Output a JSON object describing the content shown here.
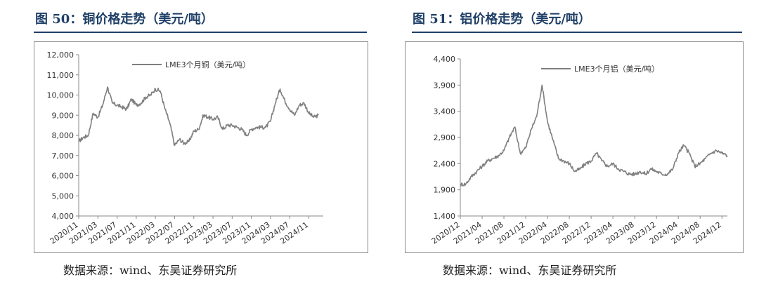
{
  "charts": [
    {
      "figure_title": "图 50：铜价格走势（美元/吨）",
      "source": "数据来源：wind、东吴证券研究所",
      "chart_data": {
        "type": "line",
        "title": "",
        "xlabel": "",
        "ylabel": "",
        "ylim": [
          4000,
          12000
        ],
        "yticks": [
          4000,
          5000,
          6000,
          7000,
          8000,
          9000,
          10000,
          11000,
          12000
        ],
        "ytick_labels": [
          "4,000",
          "5,000",
          "6,000",
          "7,000",
          "8,000",
          "9,000",
          "10,000",
          "11,000",
          "12,000"
        ],
        "xlim": [
          "2020/11",
          "2025/02"
        ],
        "xtick_labels": [
          "2020/11",
          "2021/03",
          "2021/07",
          "2021/11",
          "2022/03",
          "2022/07",
          "2022/11",
          "2023/03",
          "2023/07",
          "2023/11",
          "2024/03",
          "2024/07",
          "2024/11"
        ],
        "grid": false,
        "legend": "top",
        "color": "#7f7f7f",
        "series": [
          {
            "name": "LME3个月铜（美元/吨）",
            "x": [
              "2020/11",
              "2020/12",
              "2021/01",
              "2021/02",
              "2021/03",
              "2021/04",
              "2021/05",
              "2021/06",
              "2021/07",
              "2021/08",
              "2021/09",
              "2021/10",
              "2021/11",
              "2021/12",
              "2022/01",
              "2022/02",
              "2022/03",
              "2022/04",
              "2022/05",
              "2022/06",
              "2022/07",
              "2022/08",
              "2022/09",
              "2022/10",
              "2022/11",
              "2022/12",
              "2023/01",
              "2023/02",
              "2023/03",
              "2023/04",
              "2023/05",
              "2023/06",
              "2023/07",
              "2023/08",
              "2023/09",
              "2023/10",
              "2023/11",
              "2023/12",
              "2024/01",
              "2024/02",
              "2024/03",
              "2024/04",
              "2024/05",
              "2024/06",
              "2024/07",
              "2024/08",
              "2024/09",
              "2024/10",
              "2024/11",
              "2024/12",
              "2025/01"
            ],
            "values": [
              7700,
              7900,
              8000,
              9100,
              8900,
              9500,
              10400,
              9600,
              9500,
              9400,
              9300,
              9800,
              9500,
              9600,
              9900,
              10000,
              10300,
              10200,
              9300,
              8600,
              7500,
              7800,
              7600,
              7700,
              8200,
              8300,
              9000,
              8900,
              8800,
              8900,
              8300,
              8500,
              8500,
              8400,
              8300,
              8000,
              8300,
              8400,
              8400,
              8400,
              8700,
              9600,
              10300,
              9700,
              9300,
              9000,
              9500,
              9600,
              9100,
              8900,
              9000
            ]
          }
        ]
      }
    },
    {
      "figure_title": "图 51：铝价格走势（美元/吨）",
      "source": "数据来源：wind、东吴证券研究所",
      "chart_data": {
        "type": "line",
        "title": "",
        "xlabel": "",
        "ylabel": "",
        "ylim": [
          1400,
          4400
        ],
        "yticks": [
          1400,
          1900,
          2400,
          2900,
          3400,
          3900,
          4400
        ],
        "ytick_labels": [
          "1,400",
          "1,900",
          "2,400",
          "2,900",
          "3,400",
          "3,900",
          "4,400"
        ],
        "xlim": [
          "2020/12",
          "2025/01"
        ],
        "xtick_labels": [
          "2020/12",
          "2021/04",
          "2021/08",
          "2021/12",
          "2022/04",
          "2022/08",
          "2022/12",
          "2023/04",
          "2023/08",
          "2023/12",
          "2024/04",
          "2024/08",
          "2024/12"
        ],
        "grid": false,
        "legend": "top",
        "color": "#7f7f7f",
        "series": [
          {
            "name": "LME3个月铝（美元/吨）",
            "x": [
              "2020/12",
              "2021/01",
              "2021/02",
              "2021/03",
              "2021/04",
              "2021/05",
              "2021/06",
              "2021/07",
              "2021/08",
              "2021/09",
              "2021/10",
              "2021/11",
              "2021/12",
              "2022/01",
              "2022/02",
              "2022/03",
              "2022/04",
              "2022/05",
              "2022/06",
              "2022/07",
              "2022/08",
              "2022/09",
              "2022/10",
              "2022/11",
              "2022/12",
              "2023/01",
              "2023/02",
              "2023/03",
              "2023/04",
              "2023/05",
              "2023/06",
              "2023/07",
              "2023/08",
              "2023/09",
              "2023/10",
              "2023/11",
              "2023/12",
              "2024/01",
              "2024/02",
              "2024/03",
              "2024/04",
              "2024/05",
              "2024/06",
              "2024/07",
              "2024/08",
              "2024/09",
              "2024/10",
              "2024/11",
              "2024/12",
              "2025/01"
            ],
            "values": [
              2000,
              2010,
              2150,
              2250,
              2350,
              2450,
              2500,
              2550,
              2650,
              2900,
              3100,
              2600,
              2700,
              3050,
              3300,
              3900,
              3200,
              2850,
              2500,
              2450,
              2400,
              2250,
              2300,
              2400,
              2450,
              2600,
              2450,
              2350,
              2400,
              2300,
              2250,
              2200,
              2200,
              2250,
              2200,
              2300,
              2250,
              2200,
              2200,
              2300,
              2600,
              2750,
              2600,
              2350,
              2400,
              2500,
              2600,
              2650,
              2600,
              2550
            ]
          }
        ]
      }
    }
  ]
}
